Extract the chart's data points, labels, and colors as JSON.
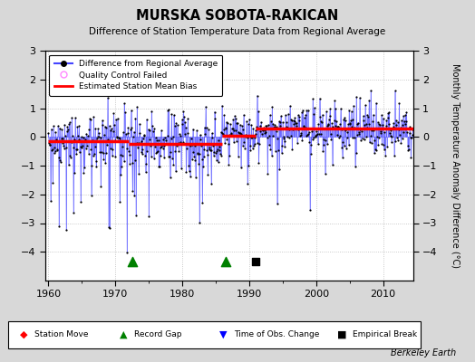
{
  "title": "MURSKA SOBOTA-RAKICAN",
  "subtitle": "Difference of Station Temperature Data from Regional Average",
  "ylabel": "Monthly Temperature Anomaly Difference (°C)",
  "xlim": [
    1959.5,
    2014.5
  ],
  "ylim": [
    -5,
    3
  ],
  "yticks": [
    -4,
    -3,
    -2,
    -1,
    0,
    1,
    2,
    3
  ],
  "xticks": [
    1960,
    1970,
    1980,
    1990,
    2000,
    2010
  ],
  "bg_color": "#d8d8d8",
  "plot_bg_color": "#ffffff",
  "line_color": "#4444ff",
  "dot_color": "#000000",
  "bias_color": "#ff0000",
  "seed": 42,
  "record_gaps": [
    1972.5,
    1986.5
  ],
  "empirical_breaks": [
    1991.0
  ],
  "segments": [
    {
      "start": 1960.0,
      "end": 1972.0,
      "bias": -0.15
    },
    {
      "start": 1972.0,
      "end": 1986.0,
      "bias": -0.25
    },
    {
      "start": 1986.0,
      "end": 1991.0,
      "bias": 0.05
    },
    {
      "start": 1991.0,
      "end": 2014.5,
      "bias": 0.28
    }
  ]
}
